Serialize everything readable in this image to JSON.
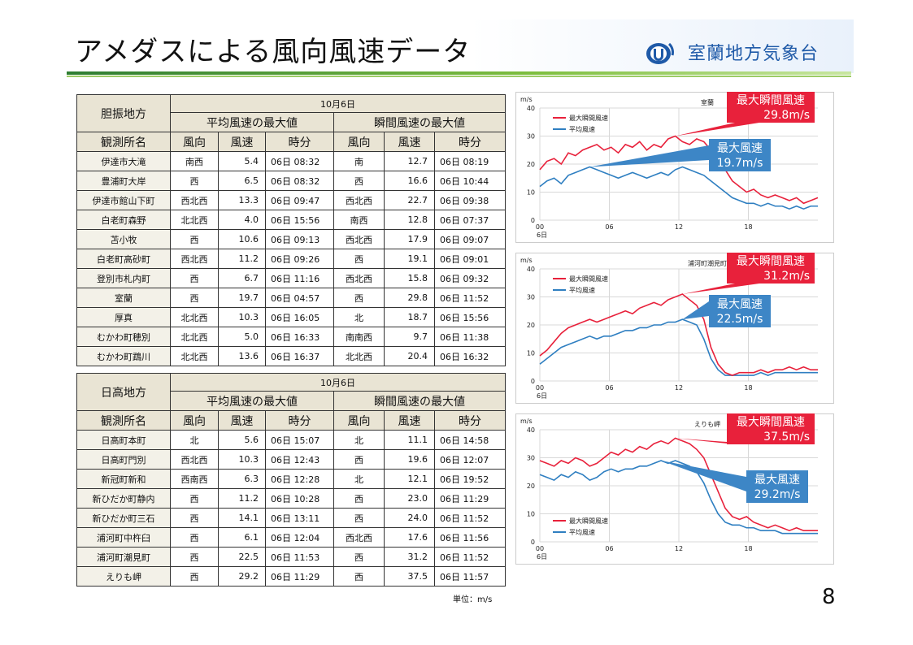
{
  "title": "アメダスによる風向風速データ",
  "org": "室蘭地方気象台",
  "page_number": "8",
  "unit_note": "単位：m/s",
  "tables": [
    {
      "region": "胆振地方",
      "date": "10月6日",
      "avg_group": "平均風速の最大値",
      "gust_group": "瞬間風速の最大値",
      "col_station": "観測所名",
      "col_dir": "風向",
      "col_speed": "風速",
      "col_time": "時分",
      "rows": [
        [
          "伊達市大滝",
          "南西",
          "5.4",
          "06日 08:32",
          "南",
          "12.7",
          "06日 08:19"
        ],
        [
          "豊浦町大岸",
          "西",
          "6.5",
          "06日 08:32",
          "西",
          "16.6",
          "06日 10:44"
        ],
        [
          "伊達市館山下町",
          "西北西",
          "13.3",
          "06日 09:47",
          "西北西",
          "22.7",
          "06日 09:38"
        ],
        [
          "白老町森野",
          "北北西",
          "4.0",
          "06日 15:56",
          "南西",
          "12.8",
          "06日 07:37"
        ],
        [
          "苫小牧",
          "西",
          "10.6",
          "06日 09:13",
          "西北西",
          "17.9",
          "06日 09:07"
        ],
        [
          "白老町高砂町",
          "西北西",
          "11.2",
          "06日 09:26",
          "西",
          "19.1",
          "06日 09:01"
        ],
        [
          "登別市札内町",
          "西",
          "6.7",
          "06日 11:16",
          "西北西",
          "15.8",
          "06日 09:32"
        ],
        [
          "室蘭",
          "西",
          "19.7",
          "06日 04:57",
          "西",
          "29.8",
          "06日 11:52"
        ],
        [
          "厚真",
          "北北西",
          "10.3",
          "06日 16:05",
          "北",
          "18.7",
          "06日 15:56"
        ],
        [
          "むかわ町穂別",
          "北北西",
          "5.0",
          "06日 16:33",
          "南南西",
          "9.7",
          "06日 11:38"
        ],
        [
          "むかわ町鵡川",
          "北北西",
          "13.6",
          "06日 16:37",
          "北北西",
          "20.4",
          "06日 16:32"
        ]
      ]
    },
    {
      "region": "日高地方",
      "date": "10月6日",
      "avg_group": "平均風速の最大値",
      "gust_group": "瞬間風速の最大値",
      "col_station": "観測所名",
      "col_dir": "風向",
      "col_speed": "風速",
      "col_time": "時分",
      "rows": [
        [
          "日高町本町",
          "北",
          "5.6",
          "06日 15:07",
          "北",
          "11.1",
          "06日 14:58"
        ],
        [
          "日高町門別",
          "西北西",
          "10.3",
          "06日 12:43",
          "西",
          "19.6",
          "06日 12:07"
        ],
        [
          "新冠町新和",
          "西南西",
          "6.3",
          "06日 12:28",
          "北",
          "12.1",
          "06日 19:52"
        ],
        [
          "新ひだか町静内",
          "西",
          "11.2",
          "06日 10:28",
          "西",
          "23.0",
          "06日 11:29"
        ],
        [
          "新ひだか町三石",
          "西",
          "14.1",
          "06日 13:11",
          "西",
          "24.0",
          "06日 11:52"
        ],
        [
          "浦河町中杵臼",
          "西",
          "6.1",
          "06日 12:04",
          "西北西",
          "17.6",
          "06日 11:56"
        ],
        [
          "浦河町潮見町",
          "西",
          "22.5",
          "06日 11:53",
          "西",
          "31.2",
          "06日 11:52"
        ],
        [
          "えりも岬",
          "西",
          "29.2",
          "06日 11:29",
          "西",
          "37.5",
          "06日 11:57"
        ]
      ]
    }
  ],
  "chart_data": [
    {
      "type": "line",
      "title": "室蘭",
      "ylabel": "m/s",
      "ylim": [
        0,
        40
      ],
      "yticks": [
        "0",
        "10",
        "20",
        "30",
        "40"
      ],
      "xticks": [
        "00",
        "06",
        "12",
        "18"
      ],
      "x_sub": "6日",
      "series": [
        {
          "name": "最大瞬間風速",
          "color": "#e8213b",
          "values": [
            18,
            21,
            22,
            20,
            24,
            23,
            25,
            26,
            27,
            25,
            26,
            24,
            27,
            26,
            28,
            25,
            27,
            26,
            29,
            30,
            28,
            27,
            29,
            28,
            25,
            23,
            18,
            14,
            12,
            10,
            11,
            9,
            8,
            9,
            8,
            7,
            8,
            6,
            7,
            8
          ]
        },
        {
          "name": "平均風速",
          "color": "#2f7fc1",
          "values": [
            12,
            14,
            15,
            13,
            16,
            17,
            18,
            19,
            18,
            17,
            16,
            15,
            16,
            17,
            16,
            15,
            16,
            17,
            16,
            18,
            19,
            18,
            17,
            16,
            14,
            12,
            10,
            8,
            7,
            6,
            6,
            5,
            6,
            5,
            5,
            4,
            5,
            4,
            5,
            5
          ]
        }
      ],
      "callout_gust_label": "最大瞬間風速",
      "callout_gust_value": "29.8m/s",
      "callout_avg_label": "最大風速",
      "callout_avg_value": "19.7m/s"
    },
    {
      "type": "line",
      "title": "浦河町潮見町",
      "ylabel": "m/s",
      "ylim": [
        0,
        40
      ],
      "yticks": [
        "0",
        "10",
        "20",
        "30",
        "40"
      ],
      "xticks": [
        "00",
        "06",
        "12",
        "18"
      ],
      "x_sub": "6日",
      "series": [
        {
          "name": "最大瞬間風速",
          "color": "#e8213b",
          "values": [
            9,
            11,
            14,
            17,
            19,
            20,
            21,
            22,
            21,
            22,
            23,
            24,
            25,
            24,
            26,
            27,
            28,
            27,
            29,
            30,
            31,
            29,
            27,
            22,
            12,
            6,
            3,
            2,
            3,
            3,
            3,
            4,
            3,
            4,
            4,
            5,
            4,
            5,
            4,
            4
          ]
        },
        {
          "name": "平均風速",
          "color": "#2f7fc1",
          "values": [
            6,
            8,
            10,
            12,
            13,
            14,
            15,
            16,
            15,
            16,
            16,
            17,
            18,
            18,
            19,
            19,
            20,
            20,
            21,
            21,
            22,
            21,
            20,
            15,
            8,
            4,
            2,
            2,
            2,
            2,
            2,
            3,
            2,
            3,
            3,
            3,
            3,
            3,
            3,
            3
          ]
        }
      ],
      "callout_gust_label": "最大瞬間風速",
      "callout_gust_value": "31.2m/s",
      "callout_avg_label": "最大風速",
      "callout_avg_value": "22.5m/s"
    },
    {
      "type": "line",
      "title": "えりも岬",
      "ylabel": "m/s",
      "ylim": [
        0,
        40
      ],
      "yticks": [
        "0",
        "10",
        "20",
        "30",
        "40"
      ],
      "xticks": [
        "00",
        "06",
        "12",
        "18"
      ],
      "x_sub": "6日",
      "series": [
        {
          "name": "最大瞬間風速",
          "color": "#e8213b",
          "values": [
            29,
            28,
            27,
            29,
            28,
            30,
            29,
            27,
            28,
            30,
            32,
            31,
            33,
            32,
            34,
            33,
            35,
            36,
            35,
            37,
            36,
            35,
            33,
            30,
            24,
            18,
            12,
            9,
            8,
            9,
            7,
            6,
            5,
            6,
            5,
            4,
            5,
            4,
            4,
            4
          ]
        },
        {
          "name": "平均風速",
          "color": "#2f7fc1",
          "values": [
            24,
            23,
            22,
            24,
            23,
            25,
            24,
            22,
            23,
            25,
            26,
            25,
            26,
            26,
            27,
            27,
            28,
            29,
            28,
            29,
            28,
            27,
            25,
            21,
            15,
            10,
            7,
            6,
            6,
            5,
            5,
            4,
            4,
            4,
            3,
            3,
            3,
            3,
            3,
            3
          ]
        }
      ],
      "callout_gust_label": "最大瞬間風速",
      "callout_gust_value": "37.5m/s",
      "callout_avg_label": "最大風速",
      "callout_avg_value": "29.2m/s"
    }
  ]
}
